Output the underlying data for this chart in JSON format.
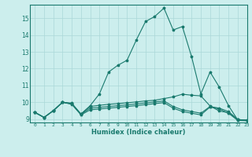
{
  "title": "",
  "xlabel": "Humidex (Indice chaleur)",
  "background_color": "#cceeed",
  "grid_color": "#aad8d8",
  "line_color": "#1a7a6e",
  "xlim": [
    -0.5,
    23
  ],
  "ylim": [
    8.8,
    15.8
  ],
  "x_ticks": [
    0,
    1,
    2,
    3,
    4,
    5,
    6,
    7,
    8,
    9,
    10,
    11,
    12,
    13,
    14,
    15,
    16,
    17,
    18,
    19,
    20,
    21,
    22,
    23
  ],
  "y_ticks": [
    9,
    10,
    11,
    12,
    13,
    14,
    15
  ],
  "series": [
    [
      9.4,
      9.1,
      9.5,
      10.0,
      9.9,
      9.3,
      9.8,
      10.5,
      11.8,
      12.2,
      12.5,
      13.7,
      14.8,
      15.1,
      15.6,
      14.3,
      14.5,
      12.7,
      10.5,
      11.8,
      10.9,
      9.8,
      8.95,
      8.95
    ],
    [
      9.4,
      9.1,
      9.5,
      10.0,
      9.95,
      9.3,
      9.75,
      9.82,
      9.88,
      9.92,
      9.97,
      10.02,
      10.08,
      10.12,
      10.22,
      10.32,
      10.48,
      10.42,
      10.38,
      9.78,
      9.48,
      9.38,
      8.98,
      8.92
    ],
    [
      9.4,
      9.1,
      9.5,
      10.0,
      9.92,
      9.28,
      9.65,
      9.7,
      9.75,
      9.8,
      9.85,
      9.9,
      9.96,
      10.02,
      10.08,
      9.75,
      9.55,
      9.45,
      9.35,
      9.75,
      9.65,
      9.45,
      8.98,
      8.92
    ],
    [
      9.4,
      9.1,
      9.5,
      10.0,
      9.88,
      9.25,
      9.55,
      9.6,
      9.65,
      9.7,
      9.75,
      9.8,
      9.86,
      9.92,
      9.98,
      9.65,
      9.45,
      9.35,
      9.25,
      9.72,
      9.6,
      9.35,
      8.92,
      8.9
    ]
  ]
}
